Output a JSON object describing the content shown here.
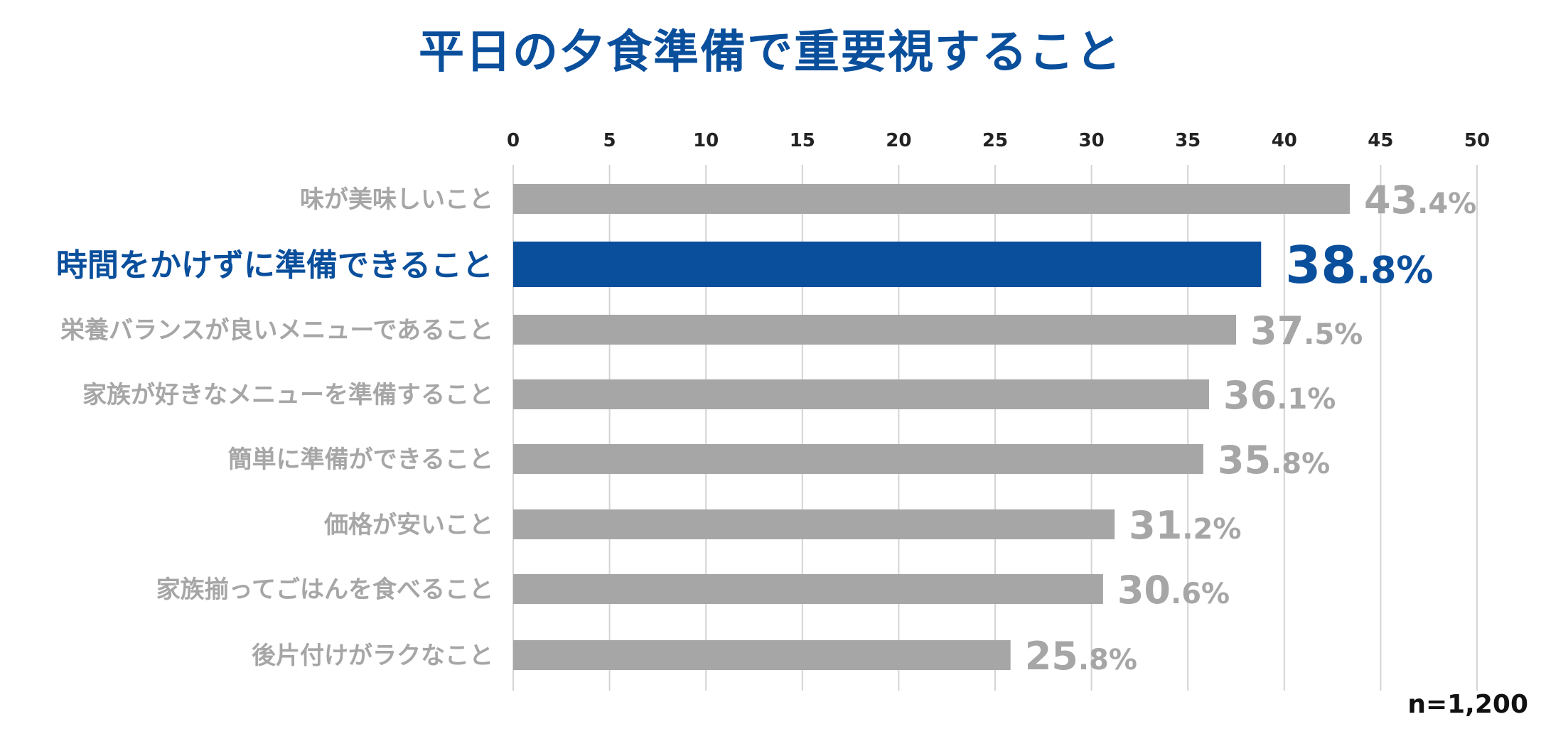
{
  "chart_data": {
    "type": "bar",
    "orientation": "horizontal",
    "title": "平日の夕食準備で重要視すること",
    "xlim": [
      0,
      50
    ],
    "xticks": [
      0,
      5,
      10,
      15,
      20,
      25,
      30,
      35,
      40,
      45,
      50
    ],
    "grid": true,
    "categories": [
      "味が美味しいこと",
      "時間をかけずに準備できること",
      "栄養バランスが良いメニューであること",
      "家族が好きなメニューを準備すること",
      "簡単に準備ができること",
      "価格が安いこと",
      "家族揃ってごはんを食べること",
      "後片付けがラクなこと"
    ],
    "values": [
      43.4,
      38.8,
      37.5,
      36.1,
      35.8,
      31.2,
      30.6,
      25.8
    ],
    "value_labels": [
      "43.4%",
      "38.8%",
      "37.5%",
      "36.1%",
      "35.8%",
      "31.2%",
      "30.6%",
      "25.8%"
    ],
    "highlight_index": 1,
    "colors": {
      "bar": "#a6a6a6",
      "highlight": "#0a4f9c",
      "label": "#a6a6a6",
      "grid": "#d4d4d4",
      "title": "#0a4f9c"
    }
  },
  "sample_size": "n=1,200"
}
